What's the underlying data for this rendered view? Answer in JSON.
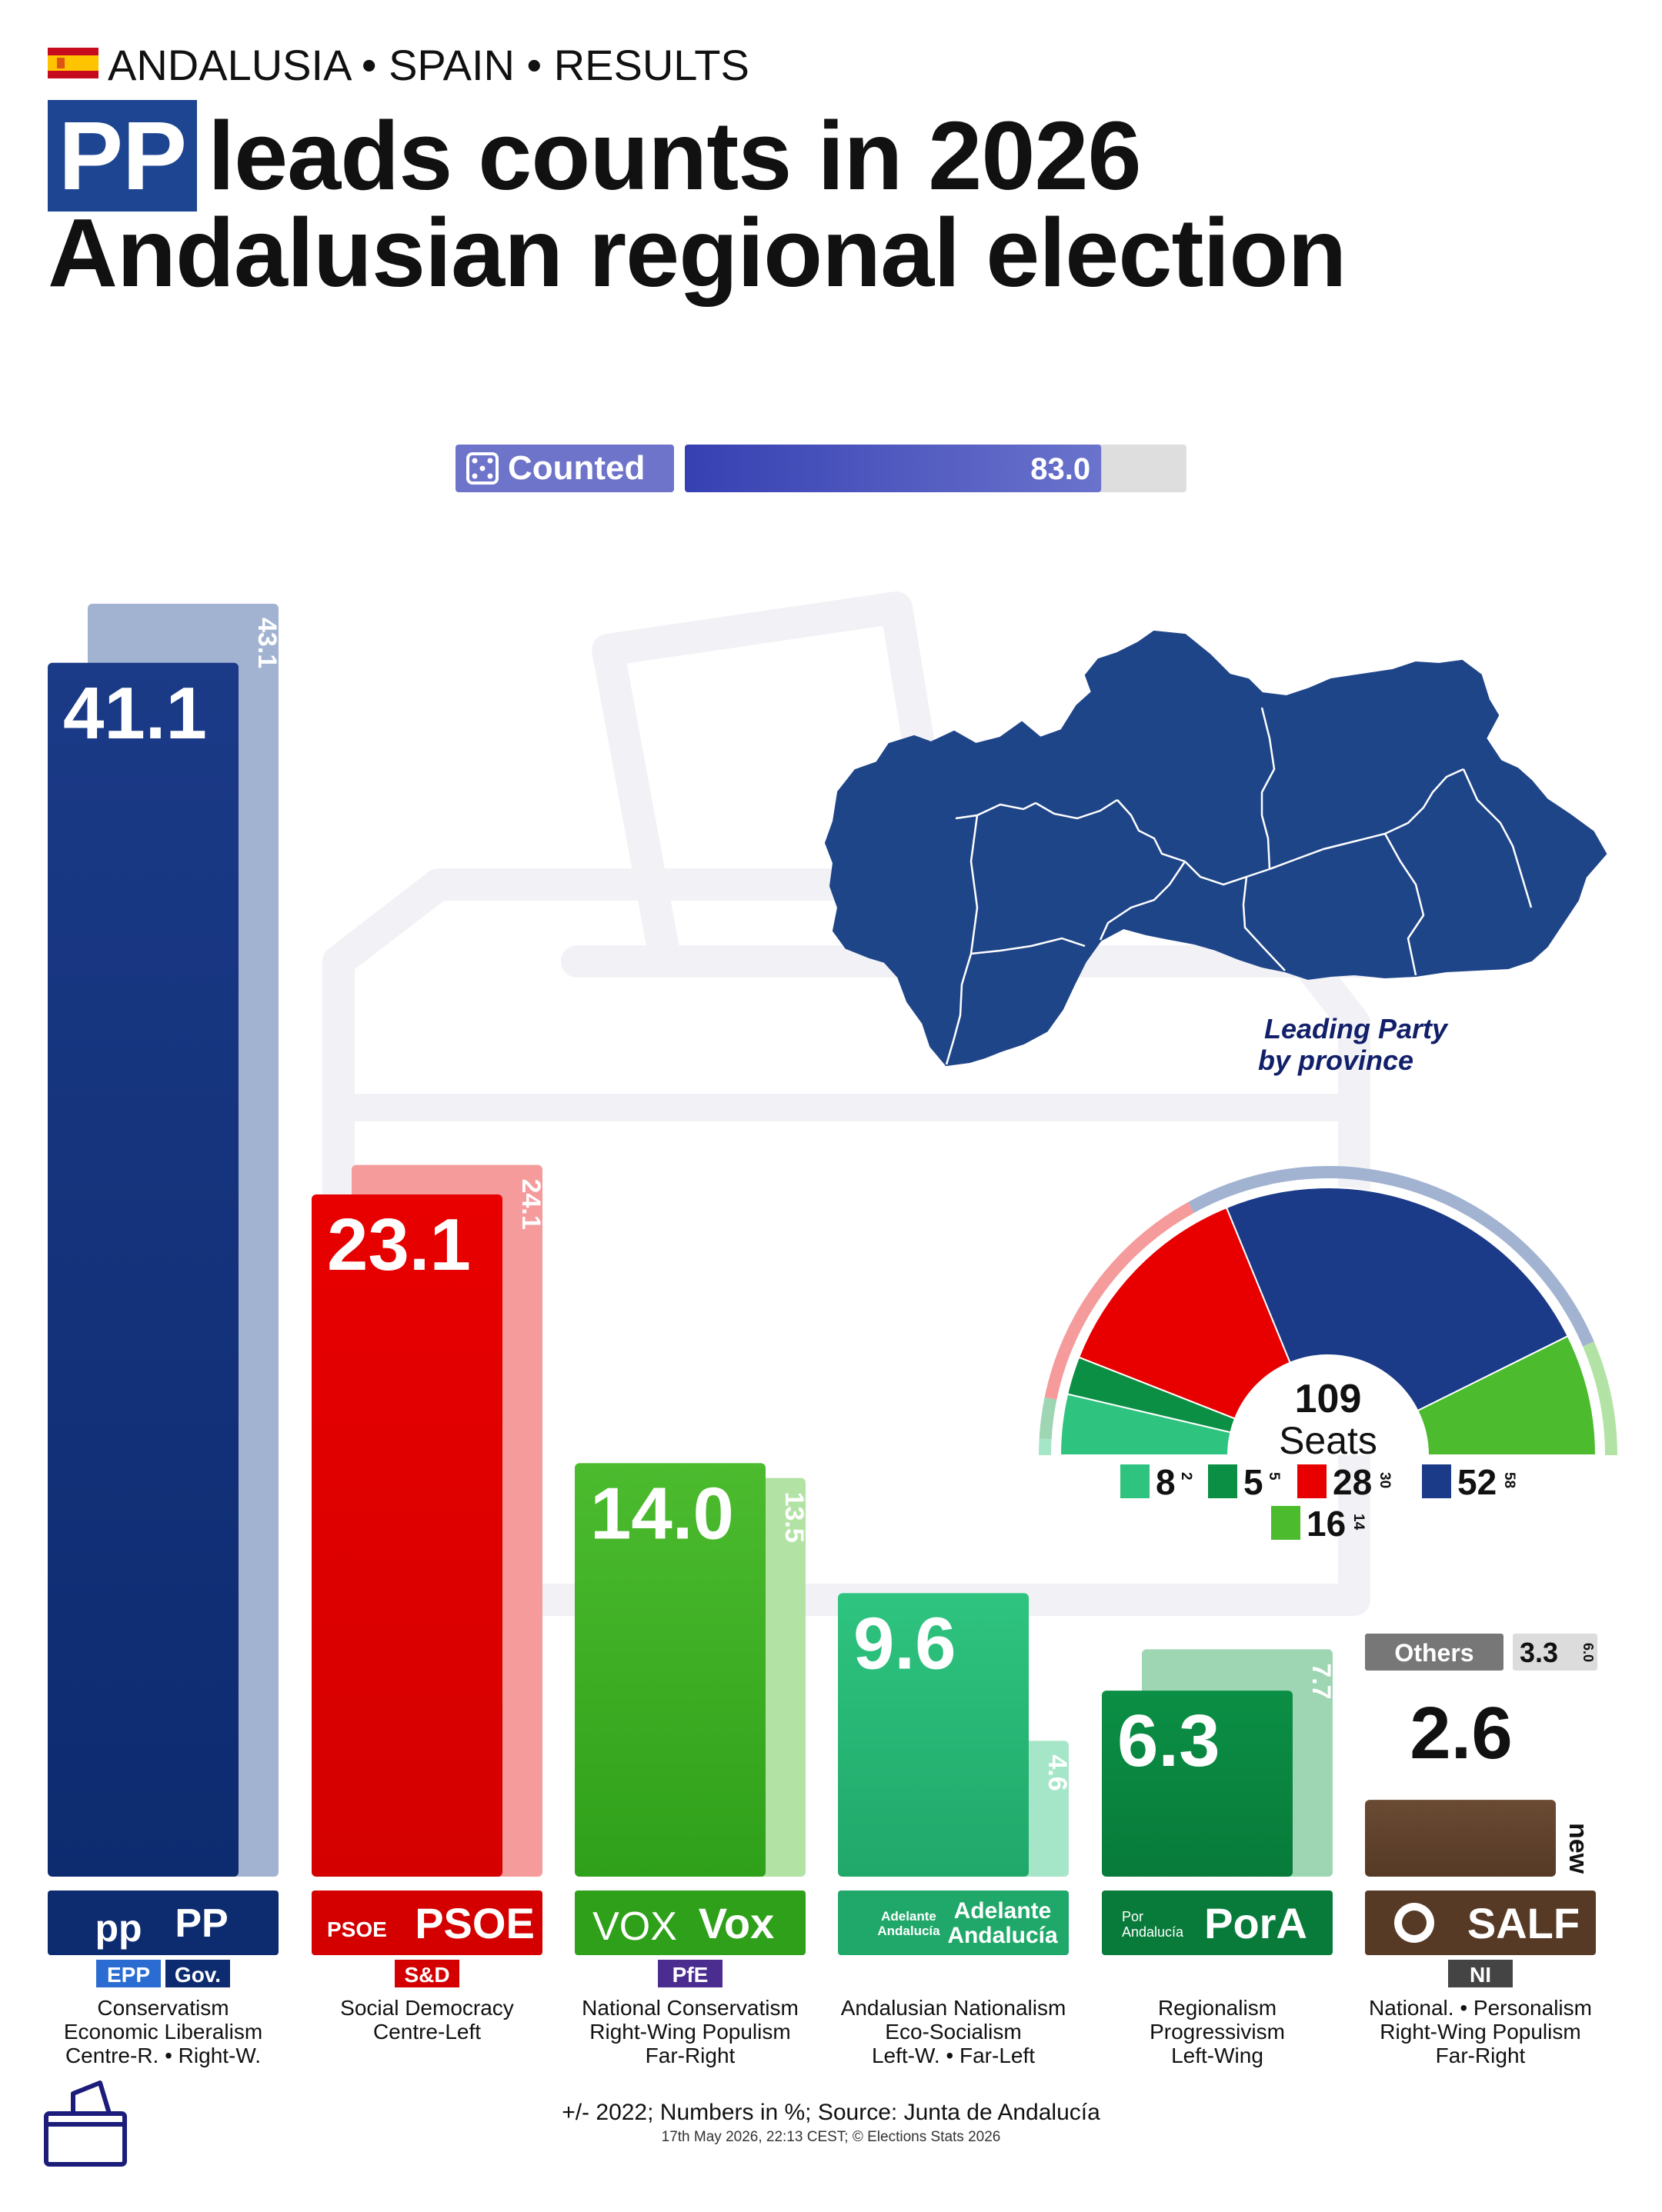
{
  "header": {
    "kicker": "ANDALUSIA • SPAIN • RESULTS",
    "title_highlight": "PP",
    "title_line1_rest": "leads counts in 2026",
    "title_line2": "Andalusian regional election"
  },
  "counted": {
    "label": "Counted",
    "value": 83.0,
    "value_text": "83.0"
  },
  "map": {
    "caption_line1": "Leading Party",
    "caption_line2": "by province",
    "color": "#1f4589"
  },
  "chart_data": {
    "type": "bar",
    "unit": "%",
    "categories": [
      "PP",
      "PSOE",
      "Vox",
      "Adelante Andalucía",
      "PorA",
      "SALF"
    ],
    "series": [
      {
        "name": "2026",
        "values": [
          41.1,
          23.1,
          14.0,
          9.6,
          6.3,
          2.6
        ]
      },
      {
        "name": "2022",
        "values": [
          43.1,
          24.1,
          13.5,
          4.6,
          7.7,
          null
        ]
      }
    ],
    "value_text": [
      "41.1",
      "23.1",
      "14.0",
      "9.6",
      "6.3",
      "2.6"
    ],
    "prev_text": [
      "43.1",
      "24.1",
      "13.5",
      "4.6",
      "7.7",
      "new"
    ],
    "others": {
      "label": "Others",
      "value": 3.3,
      "value_text": "3.3",
      "prev": 6.0,
      "prev_text": "6.0"
    },
    "ylim": [
      0,
      43.1
    ]
  },
  "parties": [
    {
      "name": "PP",
      "logo_text": "pp",
      "groups": [
        "EPP",
        "Gov."
      ],
      "color": "#1b3a87",
      "color_dark": "#0d2b6f",
      "prev_color": "#a2b3d2",
      "ideology": [
        "Conservatism",
        "Economic Liberalism",
        "Centre-R. • Right-W."
      ]
    },
    {
      "name": "PSOE",
      "logo_text": "PSOE",
      "groups": [
        "S&D"
      ],
      "color": "#e80000",
      "color_dark": "#d40000",
      "prev_color": "#f59b9b",
      "ideology": [
        "Social Democracy",
        "Centre-Left"
      ]
    },
    {
      "name": "Vox",
      "logo_text": "VOX",
      "groups": [
        "PfE"
      ],
      "color": "#4cbb2e",
      "color_dark": "#2fa01a",
      "prev_color": "#b3e3a4",
      "ideology": [
        "National Conservatism",
        "Right-Wing Populism",
        "Far-Right"
      ]
    },
    {
      "name": "Adelante Andalucía",
      "logo_text": "Adelante Andalucía",
      "groups": [],
      "color": "#2ec47f",
      "color_dark": "#20a86a",
      "prev_color": "#a6e6c8",
      "ideology": [
        "Andalusian Nationalism",
        "Eco-Socialism",
        "Left-W. • Far-Left"
      ]
    },
    {
      "name": "PorA",
      "logo_text": "Por Andalucía",
      "groups": [],
      "color": "#0b8f45",
      "color_dark": "#087b3a",
      "prev_color": "#9ed5b3",
      "ideology": [
        "Regionalism",
        "Progressivism",
        "Left-Wing"
      ]
    },
    {
      "name": "SALF",
      "logo_text": "SALF",
      "groups": [
        "NI"
      ],
      "color": "#6a4a33",
      "color_dark": "#563a26",
      "prev_color": "#cfc3b8",
      "ideology": [
        "National. • Personalism",
        "Right-Wing Populism",
        "Far-Right"
      ]
    }
  ],
  "seats": {
    "total": 109,
    "total_text": "109",
    "label": "Seats",
    "order": [
      {
        "party": "Adelante Andalucía",
        "seats": 8,
        "prev": 2,
        "color": "#2ec47f"
      },
      {
        "party": "PorA",
        "seats": 5,
        "prev": 5,
        "color": "#0b8f45"
      },
      {
        "party": "PSOE",
        "seats": 28,
        "prev": 30,
        "color": "#e80000"
      },
      {
        "party": "PP",
        "seats": 52,
        "prev": 58,
        "color": "#1b3a87"
      },
      {
        "party": "Vox",
        "seats": 16,
        "prev": 14,
        "color": "#4cbb2e"
      }
    ],
    "outer_ring": [
      {
        "party": "Adelante Andalucía",
        "seats": 2,
        "color": "#a6e6c8"
      },
      {
        "party": "PorA",
        "seats": 5,
        "color": "#9ed5b3"
      },
      {
        "party": "PSOE",
        "seats": 30,
        "color": "#f59b9b"
      },
      {
        "party": "PP",
        "seats": 58,
        "color": "#a2b3d2"
      },
      {
        "party": "Vox",
        "seats": 14,
        "color": "#b3e3a4"
      }
    ],
    "legend": [
      {
        "seats": "8",
        "prev": "2",
        "color": "#2ec47f"
      },
      {
        "seats": "5",
        "prev": "5",
        "color": "#0b8f45"
      },
      {
        "seats": "28",
        "prev": "30",
        "color": "#e80000"
      },
      {
        "seats": "52",
        "prev": "58",
        "color": "#1b3a87"
      },
      {
        "seats": "16",
        "prev": "14",
        "color": "#4cbb2e"
      }
    ]
  },
  "footer": {
    "line1": "+/- 2022; Numbers in %; Source: Junta de Andalucía",
    "line2": "17th May 2026, 22:13 CEST; © Elections Stats 2026"
  }
}
